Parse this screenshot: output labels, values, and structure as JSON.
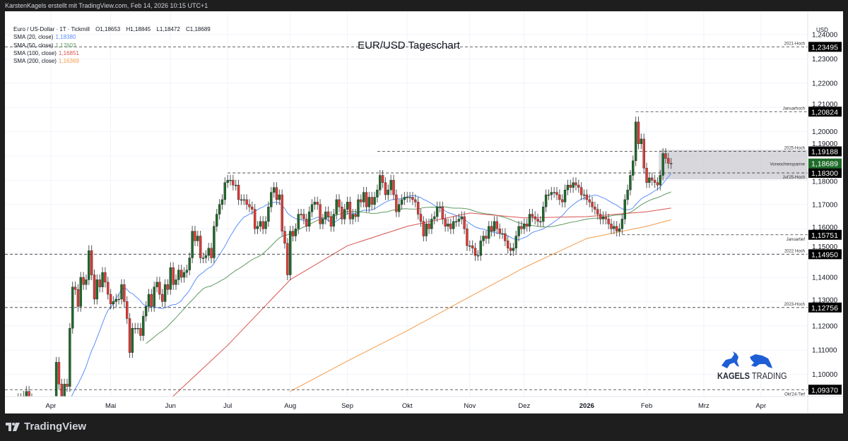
{
  "header": {
    "caption": "KarstenKagels erstellt mit TradingView.com, Feb 14, 2026 10:15 UTC+1"
  },
  "legend": {
    "symbol": "Euro / US-Dollar · 1T · Tickmill",
    "open": "O1,18653",
    "high": "H1,18845",
    "low": "L1,18472",
    "close": "C1,18689"
  },
  "footer": {
    "brand": "TradingView"
  },
  "logo": {
    "text_bold": "KAGELS",
    "text_regular": "TRADING",
    "color": "#1f5fd6"
  },
  "chart_data": {
    "type": "candlestick",
    "title": "EUR/USD Tageschart",
    "price_unit": "USD",
    "ylim": [
      1.087,
      1.246
    ],
    "grid": true,
    "colors": {
      "up": "#1e6b2a",
      "down": "#e53935",
      "wick": "#555555",
      "grid": "#f0f3fa"
    },
    "y_ticks": [
      "1,24000",
      "1,23000",
      "1,22000",
      "1,21000",
      "1,20000",
      "1,19000",
      "1,18000",
      "1,17000",
      "1,16000",
      "1,15000",
      "1,14000",
      "1,13000",
      "1,12000",
      "1,11000",
      "1,10000"
    ],
    "y_tick_values": [
      1.24,
      1.23,
      1.22,
      1.21,
      1.2,
      1.19,
      1.18,
      1.17,
      1.16,
      1.15,
      1.14,
      1.13,
      1.12,
      1.11,
      1.1
    ],
    "months": [
      {
        "label": "",
        "closes": [
          1.085,
          1.088,
          1.09,
          1.089,
          1.091,
          1.093,
          1.09,
          1.086,
          1.083,
          1.08,
          1.082,
          1.08,
          1.079,
          1.081
        ]
      },
      {
        "label": "Apr",
        "closes": [
          1.079,
          1.085,
          1.105,
          1.096,
          1.091,
          1.096,
          1.095,
          1.119,
          1.136,
          1.135,
          1.128,
          1.14,
          1.137,
          1.139,
          1.151,
          1.141,
          1.131,
          1.139,
          1.136,
          1.142,
          1.138,
          1.133
        ]
      },
      {
        "label": "Mai",
        "closes": [
          1.129,
          1.13,
          1.131,
          1.131,
          1.137,
          1.13,
          1.123,
          1.109,
          1.119,
          1.119,
          1.119,
          1.116,
          1.124,
          1.128,
          1.133,
          1.128,
          1.136,
          1.138,
          1.133,
          1.13,
          1.137,
          1.135
        ]
      },
      {
        "label": "Jun",
        "closes": [
          1.144,
          1.137,
          1.139,
          1.143,
          1.14,
          1.142,
          1.143,
          1.148,
          1.159,
          1.155,
          1.157,
          1.148,
          1.148,
          1.149,
          1.152,
          1.148,
          1.161,
          1.166,
          1.17,
          1.172,
          1.179
        ]
      },
      {
        "label": "Jul",
        "closes": [
          1.18,
          1.18,
          1.178,
          1.178,
          1.172,
          1.172,
          1.172,
          1.17,
          1.169,
          1.168,
          1.16,
          1.161,
          1.163,
          1.16,
          1.163,
          1.169,
          1.175,
          1.177,
          1.172,
          1.174,
          1.159,
          1.154,
          1.141
        ]
      },
      {
        "label": "Aug",
        "closes": [
          1.159,
          1.157,
          1.16,
          1.166,
          1.166,
          1.164,
          1.161,
          1.167,
          1.17,
          1.171,
          1.17,
          1.162,
          1.164,
          1.167,
          1.165,
          1.161,
          1.166,
          1.172,
          1.169,
          1.164,
          1.168
        ]
      },
      {
        "label": "Sep",
        "closes": [
          1.171,
          1.164,
          1.166,
          1.165,
          1.172,
          1.171,
          1.175,
          1.169,
          1.173,
          1.17,
          1.173,
          1.176,
          1.182,
          1.179,
          1.174,
          1.176,
          1.18,
          1.174,
          1.167,
          1.17,
          1.172,
          1.173
        ]
      },
      {
        "label": "Okt",
        "closes": [
          1.173,
          1.173,
          1.172,
          1.171,
          1.166,
          1.163,
          1.157,
          1.162,
          1.16,
          1.164,
          1.165,
          1.169,
          1.169,
          1.164,
          1.161,
          1.162,
          1.16,
          1.163,
          1.163,
          1.164,
          1.165,
          1.16,
          1.153
        ]
      },
      {
        "label": "Nov",
        "closes": [
          1.153,
          1.152,
          1.149,
          1.149,
          1.155,
          1.157,
          1.156,
          1.161,
          1.159,
          1.163,
          1.16,
          1.158,
          1.158,
          1.155,
          1.152,
          1.151,
          1.152,
          1.157,
          1.161,
          1.16
        ]
      },
      {
        "label": "Dez",
        "closes": [
          1.162,
          1.161,
          1.166,
          1.165,
          1.164,
          1.163,
          1.163,
          1.169,
          1.174,
          1.174,
          1.175,
          1.175,
          1.174,
          1.172,
          1.171,
          1.176,
          1.178,
          1.177,
          1.179,
          1.178,
          1.177,
          1.174,
          1.174
        ]
      },
      {
        "label": "2026",
        "bold": true,
        "closes": [
          1.172,
          1.171,
          1.169,
          1.168,
          1.166,
          1.164,
          1.165,
          1.164,
          1.162,
          1.16,
          1.161,
          1.159,
          1.16,
          1.164,
          1.172,
          1.176,
          1.182,
          1.188,
          1.204,
          1.195,
          1.197,
          1.185
        ]
      },
      {
        "label": "Feb",
        "closes": [
          1.179,
          1.181,
          1.18,
          1.179,
          1.178,
          1.182,
          1.191,
          1.189,
          1.187,
          1.18689
        ]
      },
      {
        "label": "Mrz",
        "closes": []
      },
      {
        "label": "Apr",
        "closes": []
      }
    ],
    "sma": [
      {
        "label": "SMA (20, close)",
        "value_text": "1,18380",
        "value": 1.1838,
        "period": 20,
        "color": "#5b8ff9"
      },
      {
        "label": "SMA (50, close)",
        "value_text": "1,17603",
        "value": 1.17603,
        "period": 50,
        "color": "#5f9a62"
      },
      {
        "label": "SMA (100, close)",
        "value_text": "1,16851",
        "value": 1.16851,
        "period": 100,
        "color": "#d9534f",
        "monthly": [
          [
            "Jun",
            1.09
          ],
          [
            "Jul",
            1.112
          ],
          [
            "Aug",
            1.139
          ],
          [
            "Sep",
            1.153
          ],
          [
            "Okt",
            1.161
          ],
          [
            "Nov",
            1.1665
          ],
          [
            "Dez",
            1.1645
          ],
          [
            "2026",
            1.165
          ],
          [
            "Feb",
            1.167
          ]
        ]
      },
      {
        "label": "SMA (200, close)",
        "value_text": "1,16369",
        "value": 1.16369,
        "period": 200,
        "color": "#f59a4a",
        "monthly": [
          [
            "Aug",
            1.093
          ],
          [
            "Sep",
            1.1055
          ],
          [
            "Okt",
            1.118
          ],
          [
            "Nov",
            1.132
          ],
          [
            "Dez",
            1.144
          ],
          [
            "2026",
            1.156
          ],
          [
            "Feb",
            1.161
          ]
        ]
      }
    ],
    "levels": [
      {
        "price": 1.23495,
        "price_text": "1,23495",
        "note": "2021-Hoch",
        "from": "start"
      },
      {
        "price": 1.20824,
        "price_text": "1,20824",
        "note": "Januarhoch",
        "from": "2026"
      },
      {
        "price": 1.19188,
        "price_text": "1,19188",
        "note": "2025-Hoch",
        "from": "Sep"
      },
      {
        "price": 1.183,
        "price_text": "1,18300",
        "note": "Jul'25-Hoch",
        "from": "Jul"
      },
      {
        "price": 1.15751,
        "price_text": "1,15751",
        "note": "Januartief",
        "from": "2026"
      },
      {
        "price": 1.1495,
        "price_text": "1,14950",
        "note": "2022 Hoch",
        "from": "start"
      },
      {
        "price": 1.12756,
        "price_text": "1,12756",
        "note": "2023-Hoch",
        "from": "start"
      },
      {
        "price": 1.0937,
        "price_text": "1,09370",
        "note": "Okt'24-Tief",
        "from": "start"
      }
    ],
    "range_box": {
      "label": "Vorwochenspanne",
      "top": 1.1925,
      "bottom": 1.1804,
      "color": "#c9cad0"
    },
    "last_price": {
      "price": 1.18689,
      "text": "1,18689",
      "color": "#1e6b2a"
    }
  }
}
